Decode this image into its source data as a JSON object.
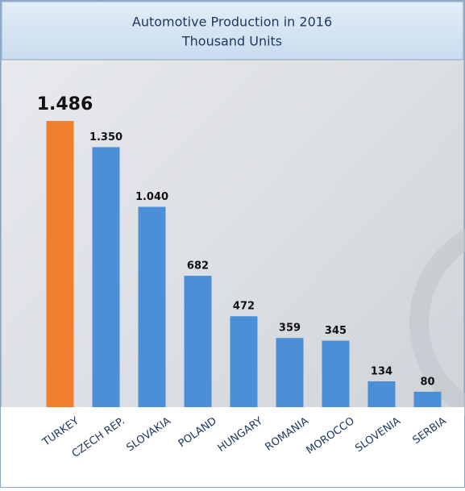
{
  "chart_data": {
    "type": "bar",
    "title": "Automotive Production in 2016",
    "subtitle": "Thousand Units",
    "categories": [
      "TURKEY",
      "CZECH REP.",
      "SLOVAKIA",
      "POLAND",
      "HUNGARY",
      "ROMANIA",
      "MOROCCO",
      "SLOVENIA",
      "SERBIA"
    ],
    "values": [
      1486,
      1350,
      1040,
      682,
      472,
      359,
      345,
      134,
      80
    ],
    "value_labels": [
      "1.486",
      "1.350",
      "1.040",
      "682",
      "472",
      "359",
      "345",
      "134",
      "80"
    ],
    "colors": [
      "#f07f2f",
      "#4a8fd8",
      "#4a8fd8",
      "#4a8fd8",
      "#4a8fd8",
      "#4a8fd8",
      "#4a8fd8",
      "#4a8fd8",
      "#4a8fd8"
    ]
  }
}
